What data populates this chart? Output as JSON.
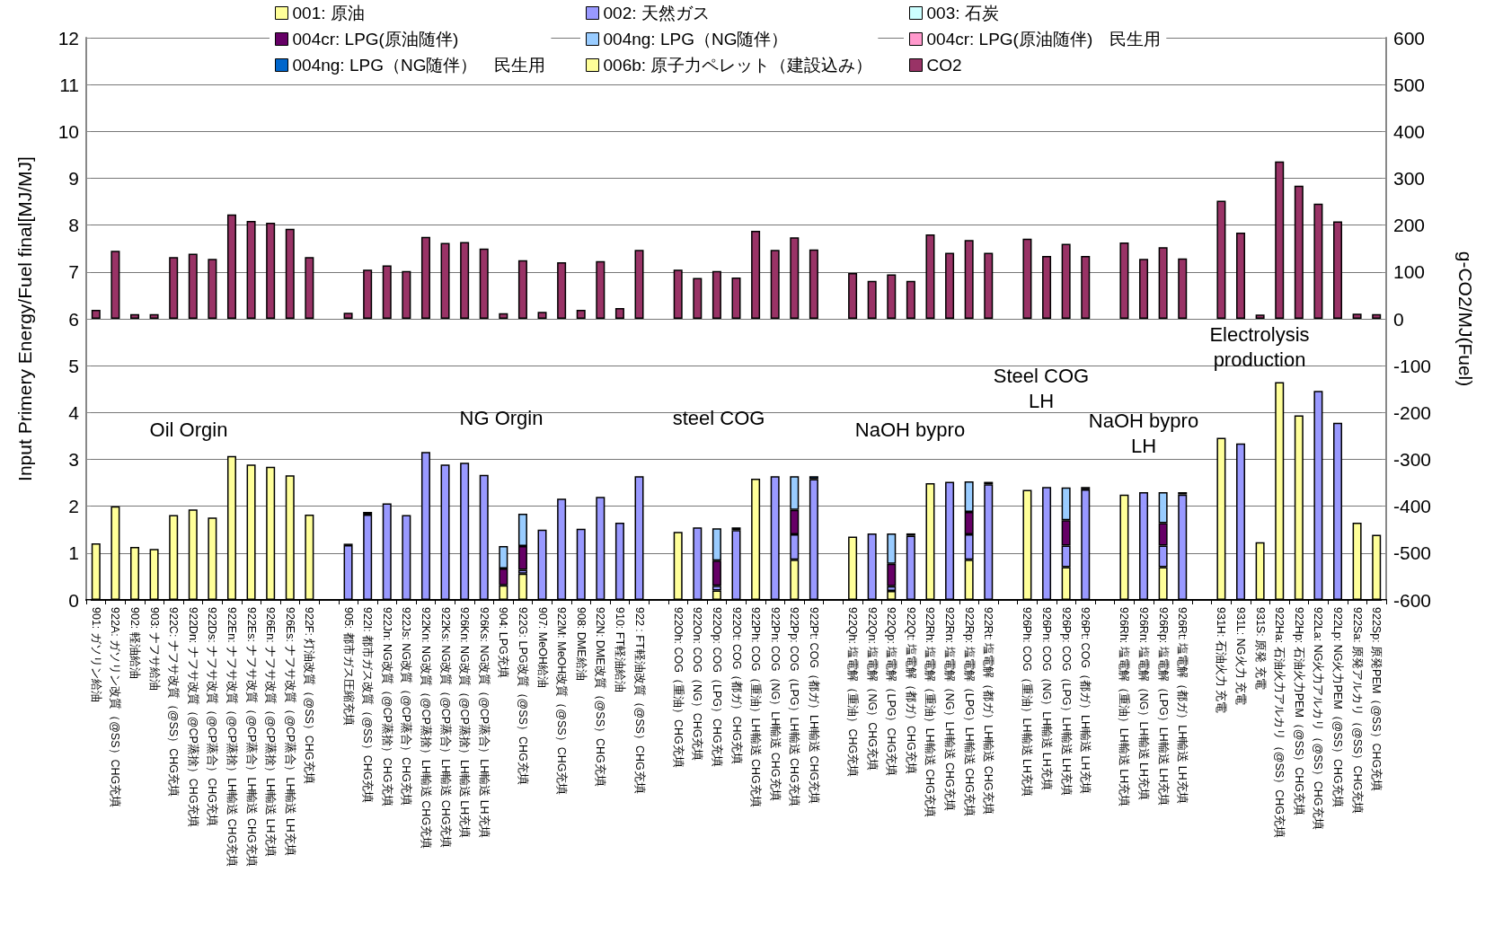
{
  "chart_data": {
    "type": "bar",
    "stacked": true,
    "ylabel": "Input Primery Energy/Fuel final[MJ/MJ]",
    "y2label": "g-CO2/MJ(Fuel)",
    "categories": [
      "901: ガソリン給油",
      "922A: ガソリン改質（@SS）CHG充填",
      "902: 軽油給油",
      "903: ナフサ給油",
      "922C: ナフサ改質（@SS）CHG充填",
      "922Dn: ナフサ改質（@CP蒸捨）CHG充填",
      "922Ds: ナフサ改質（@CP蒸合）CHG充填",
      "922En: ナフサ改質（@CP蒸捨）LH輸送 CHG充填",
      "922Es: ナフサ改質（@CP蒸合）LH輸送 CHG充填",
      "926En: ナフサ改質（@CP蒸捨）LH輸送 LH充填",
      "926Es: ナフサ改質（@CP蒸合）LH輸送 LH充填",
      "922F: 灯油改質（@SS）CHG充填",
      null,
      "905: 都市ガス圧縮充填",
      "922I: 都市ガス改質（@SS）CHG充填",
      "922Jn: NG改質（@CP蒸捨）CHG充填",
      "922Js: NG改質（@CP蒸合）CHG充填",
      "922Kn: NG改質（@CP蒸捨）LH輸送 CHG充填",
      "922Ks: NG改質（@CP蒸合）LH輸送 CHG充填",
      "926Kn: NG改質（@CP蒸捨）LH輸送 LH充填",
      "926Ks: NG改質（@CP蒸合）LH輸送 LH充填",
      "904: LPG充填",
      "922G: LPG改質（@SS）CHG充填",
      "907: MeOH給油",
      "922M: MeOH改質（@SS）CHG充填",
      "908: DME給油",
      "922N: DME改質（@SS）CHG充填",
      "910: FT軽油給油",
      "922 : FT軽油改質（@SS）CHG充填",
      null,
      "922Oh: COG（重油）CHG充填",
      "922On: COG（NG）CHG充填",
      "922Op: COG（LPG）CHG充填",
      "922Ot: COG（都ガ）CHG充填",
      "922Ph: COG（重油）LH輸送 CHG充填",
      "922Pn: COG（NG）LH輸送 CHG充填",
      "922Pp: COG（LPG）LH輸送 CHG充填",
      "922Pt: COG（都ガ）LH輸送 CHG充填",
      null,
      "922Qh: 塩電解（重油）CHG充填",
      "922Qn: 塩電解（NG）CHG充填",
      "922Qp: 塩電解（LPG）CHG充填",
      "922Qt: 塩電解（都ガ）CHG充填",
      "922Rh: 塩電解（重油）LH輸送 CHG充填",
      "922Rn: 塩電解（NG）LH輸送 CHG充填",
      "922Rp: 塩電解（LPG）LH輸送 CHG充填",
      "922Rt: 塩電解（都ガ）LH輸送 CHG充填",
      null,
      "926Ph: COG（重油）LH輸送 LH充填",
      "926Pn: COG（NG）LH輸送 LH充填",
      "926Pp: COG（LPG）LH輸送 LH充填",
      "926Pt: COG（都ガ）LH輸送 LH充填",
      null,
      "926Rh: 塩電解（重油）LH輸送 LH充填",
      "926Rn: 塩電解（NG）LH輸送 LH充填",
      "926Rp: 塩電解（LPG）LH輸送 LH充填",
      "926Rt: 塩電解（都ガ）LH輸送 LH充填",
      null,
      "931H: 石油火力 充電",
      "931L: NG火力 充電",
      "931S: 原発 充電",
      "922Ha: 石油火力アルカリ（@SS）CHG充填",
      "922Hp: 石油火力PEM（@SS）CHG充填",
      "922La: NG火力アルカリ（@SS）CHG充填",
      "922Lp: NG火力PEM（@SS）CHG充填",
      "922Sa: 原発アルカリ（@SS）CHG充填",
      "922Sp: 原発PEM（@SS）CHG充填"
    ],
    "series": [
      {
        "name": "001: 原油",
        "color": "#ffff99",
        "values": [
          1.21,
          2.0,
          1.13,
          1.09,
          1.81,
          1.93,
          1.76,
          3.07,
          2.89,
          2.84,
          2.66,
          1.82,
          null,
          null,
          null,
          null,
          null,
          null,
          null,
          null,
          null,
          0.31,
          0.56,
          null,
          null,
          null,
          null,
          null,
          null,
          null,
          1.45,
          null,
          0.2,
          null,
          2.59,
          null,
          0.86,
          null,
          null,
          1.35,
          null,
          0.19,
          null,
          2.49,
          null,
          0.86,
          null,
          null,
          2.35,
          null,
          0.7,
          null,
          null,
          2.25,
          null,
          0.7,
          null,
          null,
          3.46,
          null,
          null,
          4.65,
          3.94,
          null,
          null,
          null,
          null
        ]
      },
      {
        "name": "002: 天然ガス",
        "color": "#9999ff",
        "values": [
          null,
          null,
          null,
          null,
          null,
          null,
          null,
          null,
          null,
          null,
          null,
          null,
          null,
          1.17,
          1.82,
          2.06,
          1.81,
          3.16,
          2.89,
          2.93,
          2.67,
          null,
          0.08,
          1.5,
          2.16,
          1.52,
          2.2,
          1.65,
          2.64,
          null,
          null,
          1.55,
          0.1,
          1.49,
          null,
          2.64,
          0.54,
          2.58,
          null,
          null,
          1.42,
          0.1,
          1.37,
          null,
          2.52,
          0.54,
          2.47,
          null,
          null,
          2.41,
          0.46,
          2.36,
          null,
          null,
          2.3,
          0.46,
          2.25,
          null,
          null,
          3.34,
          null,
          null,
          null,
          4.46,
          3.78,
          null,
          null
        ]
      },
      {
        "name": "003: 石炭",
        "color": "#ccffff",
        "values": [
          null,
          null,
          null,
          null,
          null,
          null,
          null,
          null,
          null,
          null,
          null,
          null,
          null,
          null,
          null,
          null,
          null,
          null,
          null,
          null,
          null,
          null,
          null,
          null,
          null,
          null,
          null,
          null,
          null,
          null,
          null,
          null,
          null,
          null,
          null,
          null,
          null,
          null,
          null,
          null,
          null,
          null,
          null,
          null,
          null,
          null,
          null,
          null,
          null,
          null,
          null,
          null,
          null,
          null,
          null,
          null,
          null,
          null,
          null,
          null,
          null,
          null,
          null,
          null,
          null,
          null,
          null
        ]
      },
      {
        "name": "004cr: LPG(原油随伴)",
        "color": "#660066",
        "values": [
          null,
          null,
          null,
          null,
          null,
          null,
          null,
          null,
          null,
          null,
          null,
          null,
          null,
          null,
          null,
          null,
          null,
          null,
          null,
          null,
          null,
          0.36,
          0.51,
          null,
          null,
          null,
          null,
          null,
          null,
          null,
          null,
          null,
          0.54,
          null,
          null,
          null,
          0.52,
          null,
          null,
          null,
          null,
          0.48,
          null,
          null,
          null,
          0.48,
          null,
          null,
          null,
          null,
          0.54,
          null,
          null,
          null,
          null,
          0.48,
          null,
          null,
          null,
          null,
          null,
          null,
          null,
          null,
          null,
          null,
          null
        ]
      },
      {
        "name": "004ng: LPG（NG随伴）",
        "color": "#99ccff",
        "values": [
          null,
          null,
          null,
          null,
          null,
          null,
          null,
          null,
          null,
          null,
          null,
          null,
          null,
          null,
          null,
          null,
          null,
          null,
          null,
          null,
          null,
          0.48,
          0.69,
          null,
          null,
          null,
          null,
          null,
          null,
          null,
          null,
          null,
          0.69,
          null,
          null,
          null,
          0.72,
          null,
          null,
          null,
          null,
          0.65,
          null,
          null,
          null,
          0.65,
          null,
          null,
          null,
          null,
          0.7,
          null,
          null,
          null,
          null,
          0.66,
          null,
          null,
          null,
          null,
          null,
          null,
          null,
          null,
          null,
          null,
          null
        ]
      },
      {
        "name": "004cr: LPG(原油随伴)　民生用",
        "color": "#ff99cc",
        "values": [
          null,
          null,
          null,
          null,
          null,
          null,
          null,
          null,
          null,
          null,
          null,
          null,
          null,
          null,
          null,
          null,
          null,
          null,
          null,
          null,
          null,
          null,
          null,
          null,
          null,
          null,
          null,
          null,
          null,
          null,
          null,
          null,
          null,
          null,
          null,
          null,
          null,
          null,
          null,
          null,
          null,
          null,
          null,
          null,
          null,
          null,
          null,
          null,
          null,
          null,
          null,
          null,
          null,
          null,
          null,
          null,
          null,
          null,
          null,
          null,
          null,
          null,
          null,
          null,
          null,
          null,
          null
        ]
      },
      {
        "name": "004ng: LPG（NG随伴）　民生用",
        "color": "#0066cc",
        "values": [
          null,
          null,
          null,
          null,
          null,
          null,
          null,
          null,
          null,
          null,
          null,
          null,
          null,
          0.03,
          0.06,
          null,
          null,
          null,
          null,
          null,
          null,
          null,
          null,
          null,
          null,
          null,
          null,
          null,
          null,
          null,
          null,
          null,
          null,
          0.06,
          null,
          null,
          null,
          0.06,
          null,
          null,
          null,
          null,
          0.05,
          null,
          null,
          null,
          0.05,
          null,
          null,
          null,
          null,
          0.05,
          null,
          null,
          null,
          null,
          0.05,
          null,
          null,
          null,
          null,
          null,
          null,
          null,
          null,
          null,
          null
        ]
      },
      {
        "name": "006b: 原子力ペレット（建設込み）",
        "color": "#ffff99",
        "values": [
          null,
          null,
          null,
          null,
          null,
          null,
          null,
          null,
          null,
          null,
          null,
          null,
          null,
          null,
          null,
          null,
          null,
          null,
          null,
          null,
          null,
          null,
          null,
          null,
          null,
          null,
          null,
          null,
          null,
          null,
          null,
          null,
          null,
          null,
          null,
          null,
          null,
          null,
          null,
          null,
          null,
          null,
          null,
          null,
          null,
          null,
          null,
          null,
          null,
          null,
          null,
          null,
          null,
          null,
          null,
          null,
          null,
          null,
          null,
          null,
          1.23,
          null,
          null,
          null,
          null,
          1.65,
          1.39
        ]
      },
      {
        "name": "CO2",
        "color": "#993366",
        "axis": "y2",
        "values": [
          19,
          145,
          10,
          10,
          132,
          139,
          128,
          223,
          209,
          205,
          192,
          132,
          null,
          13,
          105,
          114,
          102,
          175,
          162,
          164,
          150,
          12,
          125,
          15,
          121,
          19,
          123,
          23,
          147,
          null,
          105,
          87,
          102,
          88,
          188,
          147,
          174,
          148,
          null,
          98,
          81,
          95,
          81,
          180,
          141,
          168,
          141,
          null,
          171,
          134,
          160,
          134,
          null,
          163,
          128,
          153,
          129,
          null,
          252,
          184,
          9,
          336,
          284,
          246,
          208,
          11,
          10
        ]
      }
    ],
    "ylim": [
      0,
      12
    ],
    "yticks": [
      0,
      1,
      2,
      3,
      4,
      5,
      6,
      7,
      8,
      9,
      10,
      11,
      12
    ],
    "y2lim": [
      -600,
      600
    ],
    "y2ticks": [
      -600,
      -500,
      -400,
      -300,
      -200,
      -100,
      0,
      100,
      200,
      300,
      400,
      500,
      600
    ],
    "grid": "y",
    "legend": "top",
    "annotations": [
      "Oil Orgin",
      "NG Orgin",
      "steel COG",
      "NaOH bypro",
      "Steel COG\nLH",
      "NaOH bypro\nLH",
      "Electrolysis\nproduction"
    ]
  }
}
